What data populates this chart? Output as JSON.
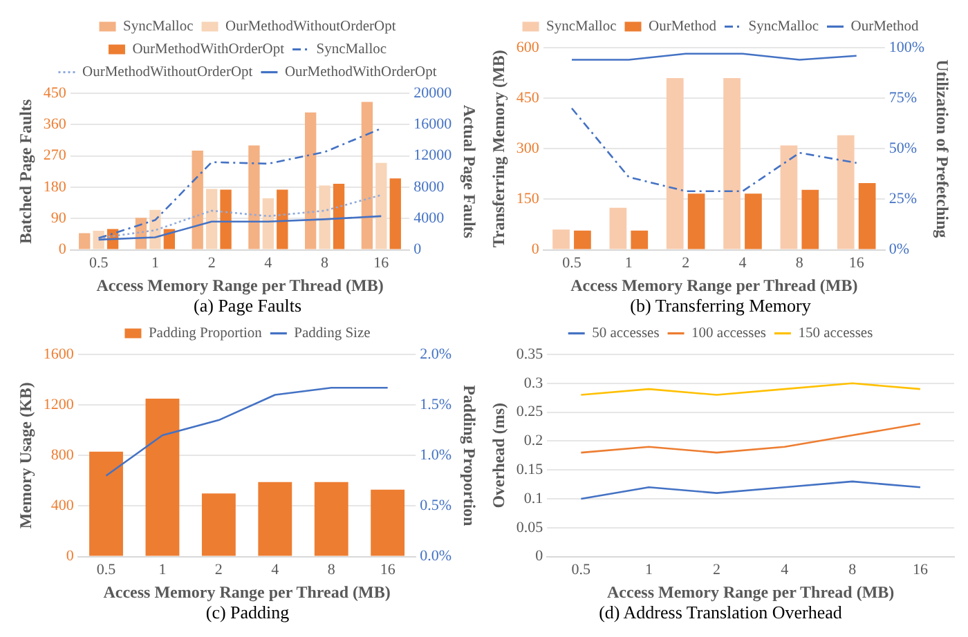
{
  "chart_data": [
    {
      "type": "bar",
      "title": "(a) Page Faults",
      "xlabel": "Access Memory Range per Thread (MB)",
      "ylabel": "Batched Page Faults",
      "y2label": "Actual Page Faults",
      "categories": [
        "0.5",
        "1",
        "2",
        "4",
        "8",
        "16"
      ],
      "series": [
        {
          "name": "SyncMalloc",
          "type": "bar",
          "color": "#f4b183",
          "values": [
            48,
            92,
            285,
            300,
            395,
            425
          ]
        },
        {
          "name": "OurMethodWithoutOrderOpt",
          "type": "bar",
          "color": "#f8d5b8",
          "values": [
            55,
            115,
            175,
            148,
            185,
            250
          ]
        },
        {
          "name": "OurMethodWithOrderOpt",
          "type": "bar",
          "color": "#ed7d31",
          "values": [
            60,
            60,
            173,
            173,
            190,
            205
          ]
        },
        {
          "name": "SyncMalloc",
          "type": "line",
          "axis": "y2",
          "color": "#4472c4",
          "line_style": "dashed",
          "values": [
            1500,
            3800,
            11200,
            11000,
            12500,
            15500
          ]
        },
        {
          "name": "OurMethodWithoutOrderOpt",
          "type": "line",
          "axis": "y2",
          "color": "#8faadc",
          "line_style": "dotted",
          "values": [
            1500,
            2500,
            5000,
            4300,
            5000,
            7000
          ]
        },
        {
          "name": "OurMethodWithOrderOpt",
          "type": "line",
          "axis": "y2",
          "color": "#4472c4",
          "line_style": "solid",
          "values": [
            1300,
            1600,
            3600,
            3600,
            3900,
            4300
          ]
        }
      ],
      "ylim": [
        0,
        450
      ],
      "yticks": [
        0,
        90,
        180,
        270,
        360,
        450
      ],
      "y2lim": [
        0,
        20000
      ],
      "y2ticks": [
        0,
        4000,
        8000,
        12000,
        16000,
        20000
      ],
      "grid": "y",
      "legend": "top",
      "marker": "none"
    },
    {
      "type": "bar",
      "title": "(b) Transferring Memory",
      "xlabel": "Access Memory Range per Thread (MB)",
      "ylabel": "Transferring Memory (MB)",
      "y2label": "Utilization of Prefetching",
      "categories": [
        "0.5",
        "1",
        "2",
        "4",
        "8",
        "16"
      ],
      "series": [
        {
          "name": "SyncMalloc",
          "type": "bar",
          "color": "#f8cbad",
          "values": [
            60,
            125,
            510,
            510,
            310,
            340
          ]
        },
        {
          "name": "OurMethod",
          "type": "bar",
          "color": "#ed7d31",
          "values": [
            57,
            57,
            167,
            167,
            178,
            198
          ]
        },
        {
          "name": "SyncMalloc",
          "type": "line",
          "axis": "y2",
          "color": "#4472c4",
          "line_style": "dashed",
          "values": [
            70,
            36,
            29,
            29,
            48,
            43
          ]
        },
        {
          "name": "OurMethod",
          "type": "line",
          "axis": "y2",
          "color": "#4472c4",
          "line_style": "solid",
          "values": [
            94,
            94,
            97,
            97,
            94,
            96
          ]
        }
      ],
      "ylim": [
        0,
        600
      ],
      "yticks": [
        0,
        150,
        300,
        450,
        600
      ],
      "y2lim": [
        0,
        100
      ],
      "y2ticks": [
        {
          "value": 0,
          "label": "0%"
        },
        {
          "value": 25,
          "label": "25%"
        },
        {
          "value": 50,
          "label": "50%"
        },
        {
          "value": 75,
          "label": "75%"
        },
        {
          "value": 100,
          "label": "100%"
        }
      ],
      "grid": "y",
      "legend": "top",
      "marker": "none"
    },
    {
      "type": "bar",
      "title": "(c) Padding",
      "xlabel": "Access Memory Range per Thread (MB)",
      "ylabel": "Memory Usage (KB)",
      "y2label": "Padding Proportion",
      "categories": [
        "0.5",
        "1",
        "2",
        "4",
        "8",
        "16"
      ],
      "series": [
        {
          "name": "Padding Proportion",
          "type": "bar",
          "color": "#ed7d31",
          "values": [
            830,
            1250,
            500,
            590,
            590,
            530
          ]
        },
        {
          "name": "Padding Size",
          "type": "line",
          "axis": "y2",
          "color": "#4472c4",
          "line_style": "solid",
          "values": [
            0.8,
            1.2,
            1.35,
            1.6,
            1.67,
            1.67
          ]
        }
      ],
      "ylim": [
        0,
        1600
      ],
      "yticks": [
        0,
        400,
        800,
        1200,
        1600
      ],
      "y2lim": [
        0,
        2
      ],
      "y2ticks": [
        {
          "value": 0,
          "label": "0.0%"
        },
        {
          "value": 0.5,
          "label": "0.5%"
        },
        {
          "value": 1,
          "label": "1.0%"
        },
        {
          "value": 1.5,
          "label": "1.5%"
        },
        {
          "value": 2,
          "label": "2.0%"
        }
      ],
      "grid": "y",
      "legend": "top",
      "marker": "none"
    },
    {
      "type": "line",
      "title": "(d) Address Translation Overhead",
      "xlabel": "Access Memory Range per Thread (MB)",
      "ylabel": "Overhead (ms)",
      "categories": [
        "0.5",
        "1",
        "2",
        "4",
        "8",
        "16"
      ],
      "series": [
        {
          "name": "50 accesses",
          "color": "#4472c4",
          "values": [
            0.1,
            0.12,
            0.11,
            0.12,
            0.13,
            0.12
          ]
        },
        {
          "name": "100 accesses",
          "color": "#ed7d31",
          "values": [
            0.18,
            0.19,
            0.18,
            0.19,
            0.21,
            0.23
          ]
        },
        {
          "name": "150 accesses",
          "color": "#ffc000",
          "values": [
            0.28,
            0.29,
            0.28,
            0.29,
            0.3,
            0.29
          ]
        }
      ],
      "ylim": [
        0,
        0.35
      ],
      "yticks": [
        0,
        0.05,
        0.1,
        0.15,
        0.2,
        0.25,
        0.3,
        0.35
      ],
      "grid": "y",
      "legend": "top",
      "marker": "none"
    }
  ]
}
